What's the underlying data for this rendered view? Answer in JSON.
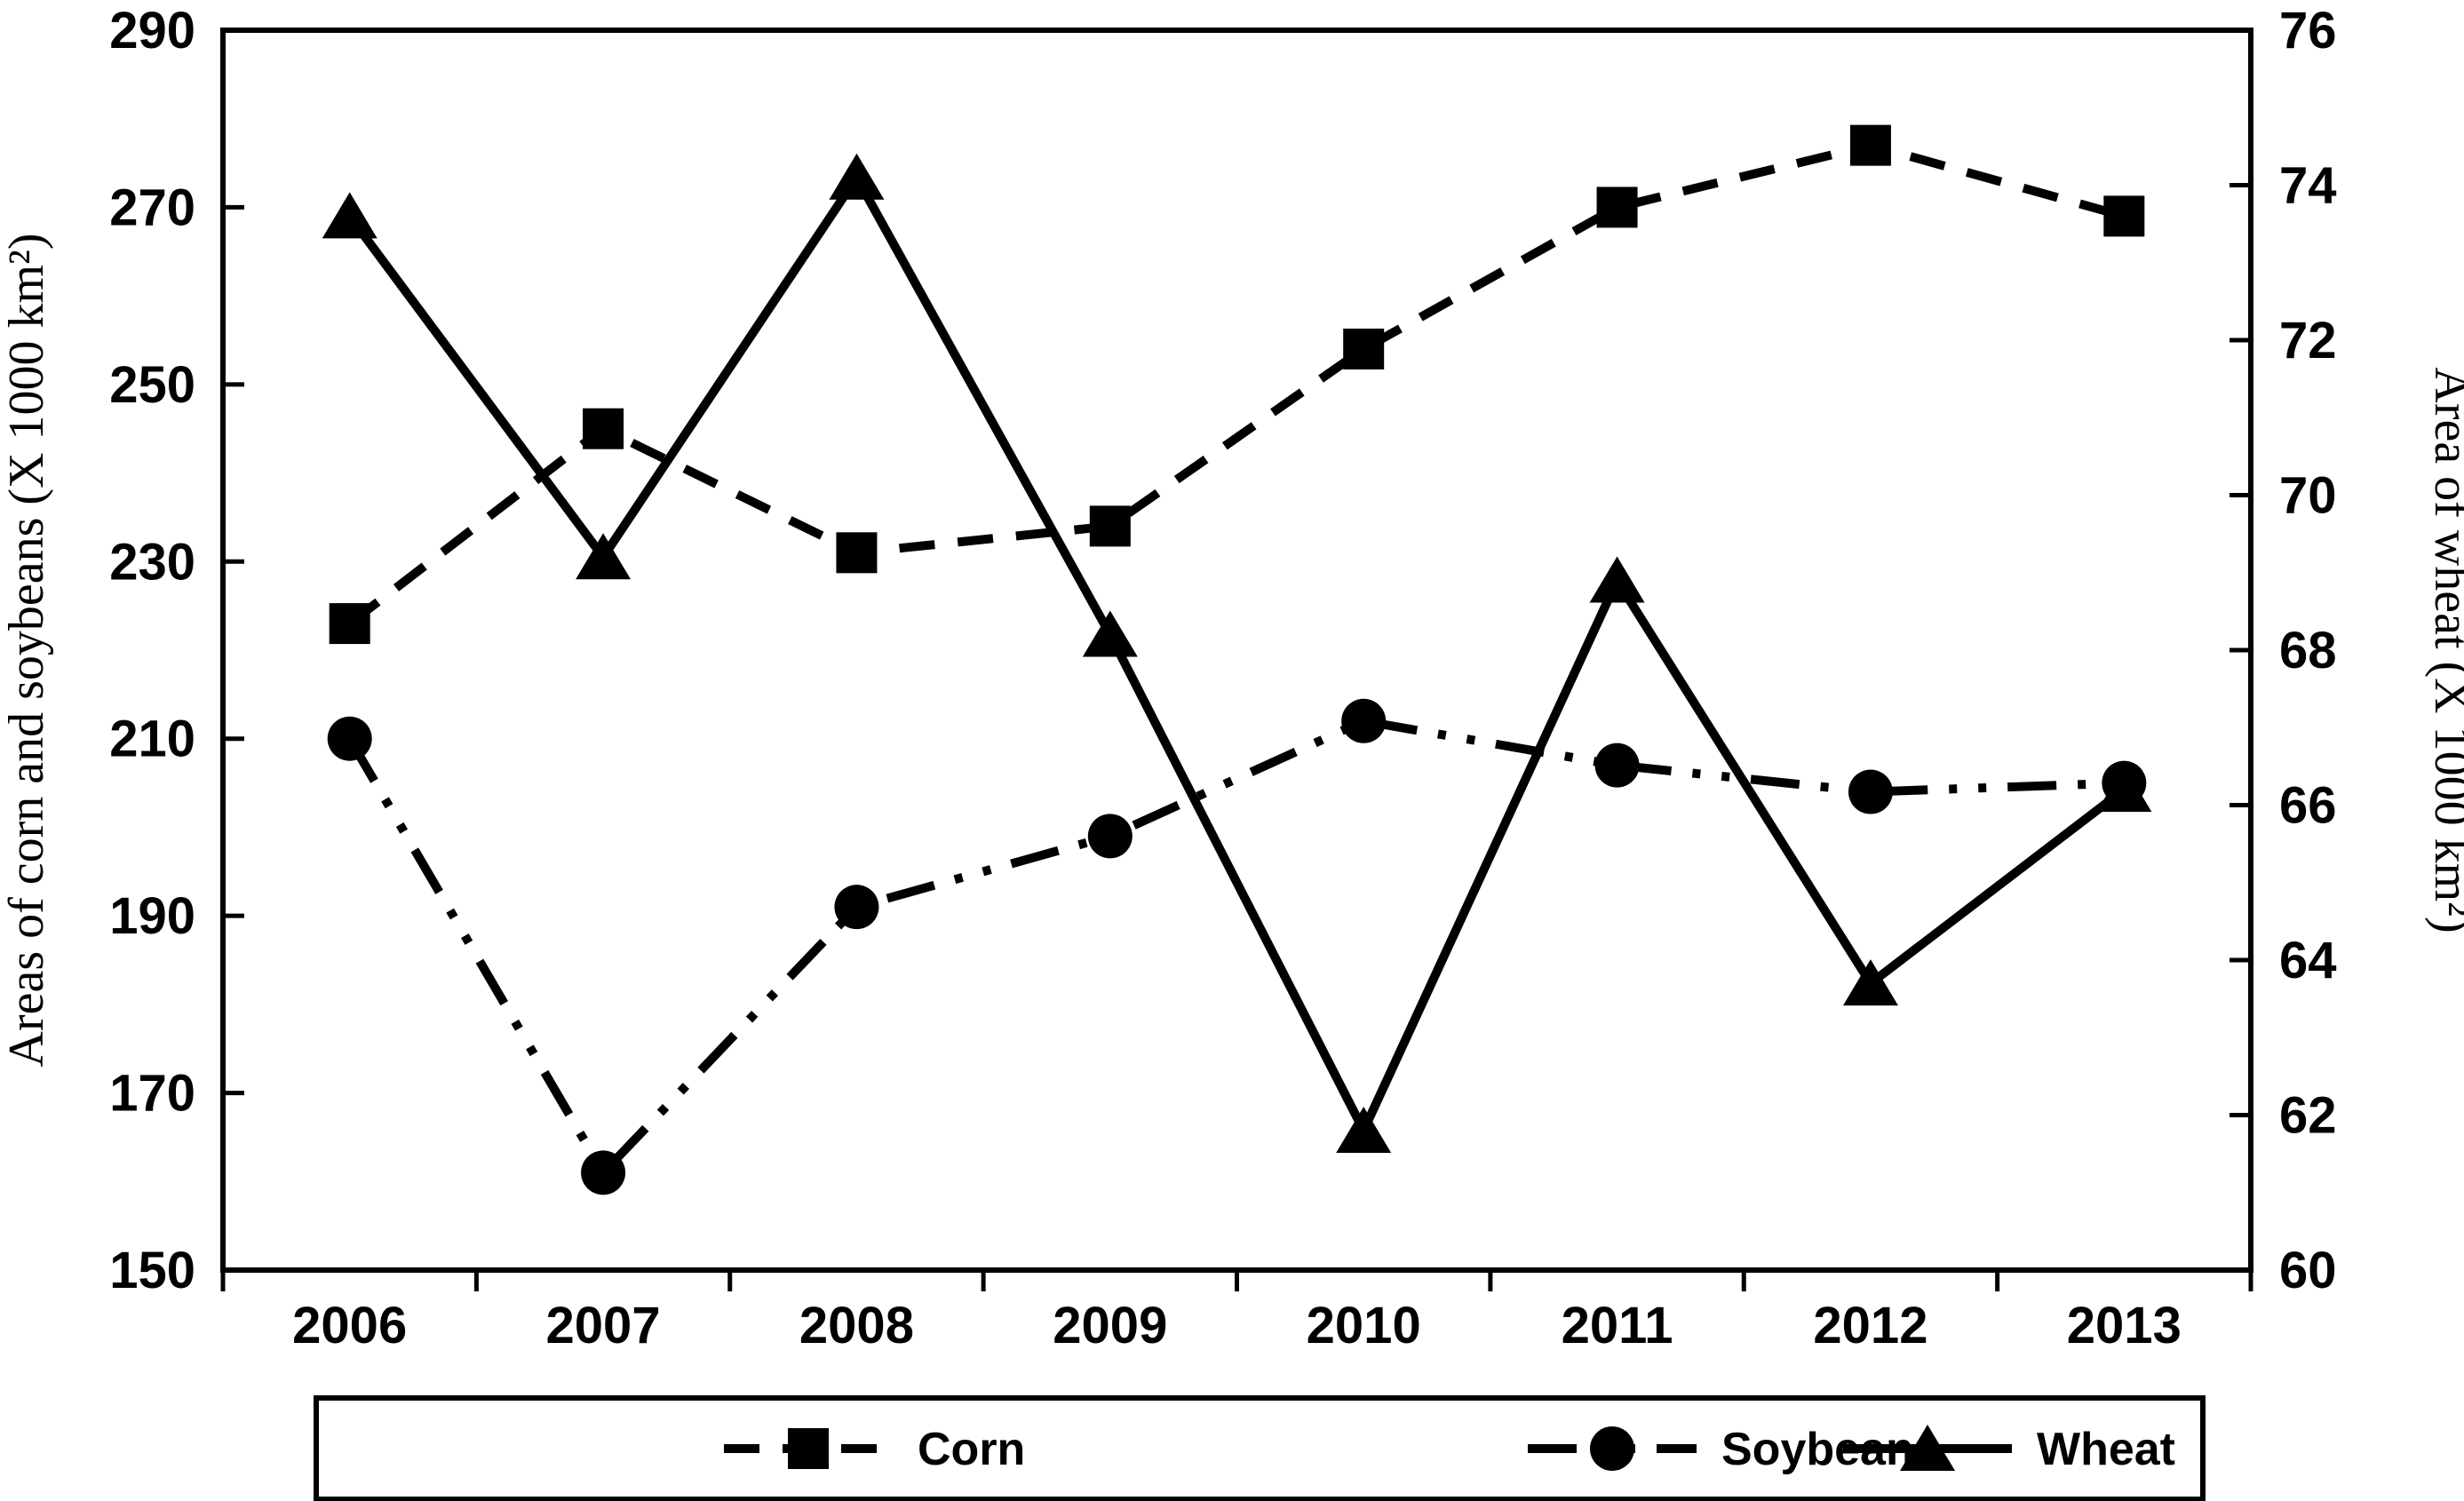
{
  "chart_data": {
    "type": "line",
    "title": "",
    "x": [
      2006,
      2007,
      2008,
      2009,
      2010,
      2011,
      2012,
      2013
    ],
    "x_axis": {
      "tick_labels": [
        "2006",
        "2007",
        "2008",
        "2009",
        "2010",
        "2011",
        "2012",
        "2013"
      ]
    },
    "left_axis": {
      "label": "Areas of corn and soybeans (X 1000 km²)",
      "min": 150,
      "max": 290,
      "tick_step": 20,
      "ticks": [
        150,
        170,
        190,
        210,
        230,
        250,
        270,
        290
      ]
    },
    "right_axis": {
      "label": "Area of wheat (X 1000 km²)",
      "min": 60,
      "max": 76,
      "tick_step": 2,
      "ticks": [
        60,
        62,
        64,
        66,
        68,
        70,
        72,
        74,
        76
      ]
    },
    "series": [
      {
        "name": "Corn",
        "axis": "left",
        "marker": "square",
        "line_style": "dashed",
        "values": [
          223,
          245,
          231,
          234,
          254,
          270,
          277,
          269
        ]
      },
      {
        "name": "Soybeans",
        "axis": "left",
        "marker": "circle",
        "line_style": "dash-dot-dot",
        "values": [
          210,
          161,
          191,
          199,
          212,
          207,
          204,
          205
        ]
      },
      {
        "name": "Wheat",
        "axis": "right",
        "marker": "triangle",
        "line_style": "solid",
        "values": [
          73.6,
          69.2,
          74.1,
          68.2,
          61.8,
          68.9,
          63.7,
          66.2
        ]
      }
    ],
    "legend": {
      "position": "bottom",
      "entries": [
        "Corn",
        "Soybeans",
        "Wheat"
      ]
    },
    "colors": {
      "foreground": "#000000",
      "background": "#ffffff"
    },
    "grid": false
  }
}
